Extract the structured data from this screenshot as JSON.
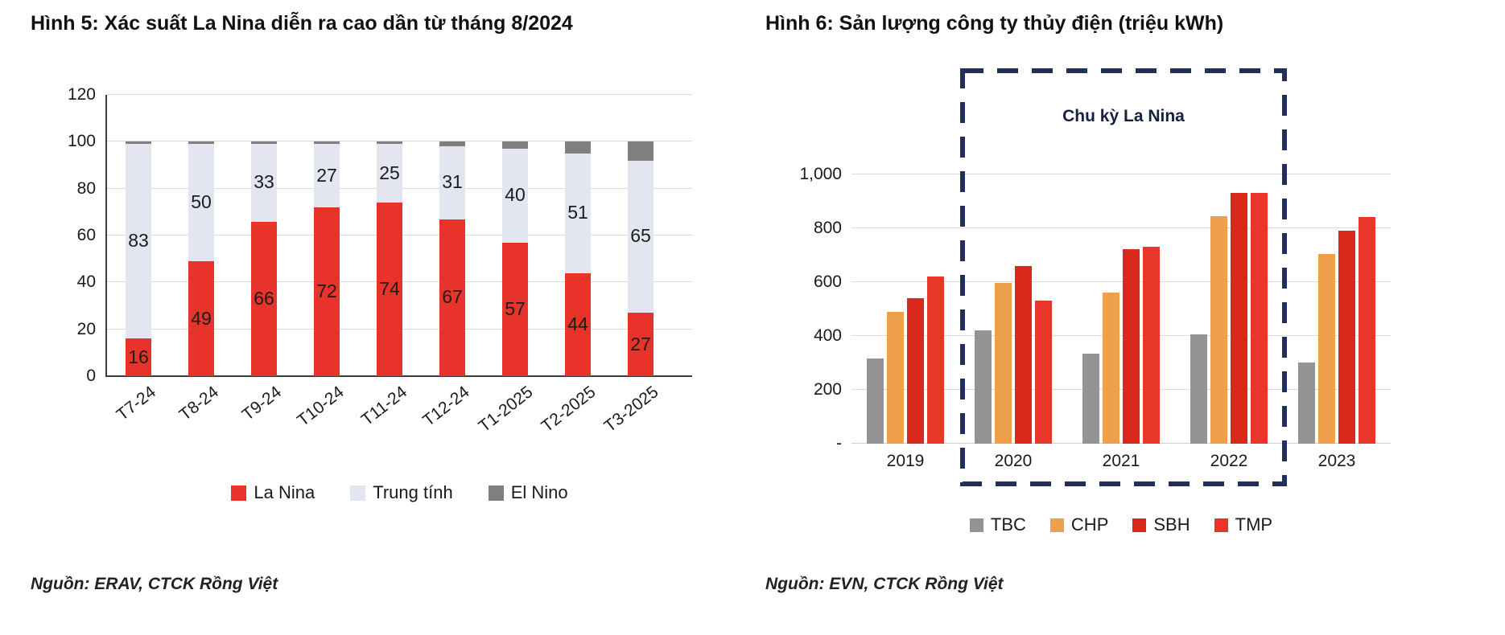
{
  "page": {
    "background": "#ffffff"
  },
  "chart_data": [
    {
      "id": "fig5",
      "type": "bar",
      "stacked": true,
      "title": "Hình 5: Xác suất La Nina diễn ra cao dần từ tháng 8/2024",
      "source": "Nguồn: ERAV, CTCK Rồng Việt",
      "categories": [
        "T7-24",
        "T8-24",
        "T9-24",
        "T10-24",
        "T11-24",
        "T12-24",
        "T1-2025",
        "T2-2025",
        "T3-2025"
      ],
      "series": [
        {
          "name": "La Nina",
          "color": "#e8332a",
          "show_labels": true,
          "values": [
            16,
            49,
            66,
            72,
            74,
            67,
            57,
            44,
            27
          ]
        },
        {
          "name": "Trung tính",
          "color": "#e3e6f1",
          "show_labels": true,
          "values": [
            83,
            50,
            33,
            27,
            25,
            31,
            40,
            51,
            65
          ]
        },
        {
          "name": "El Nino",
          "color": "#7f7f7f",
          "show_labels": false,
          "values": [
            1,
            1,
            1,
            1,
            1,
            2,
            3,
            5,
            8
          ]
        }
      ],
      "ylim": [
        0,
        120
      ],
      "yticks": [
        0,
        20,
        40,
        60,
        80,
        100,
        120
      ],
      "grid": true,
      "legend_position": "bottom",
      "xlabel": "",
      "ylabel": ""
    },
    {
      "id": "fig6",
      "type": "bar",
      "stacked": false,
      "title": "Hình 6: Sản lượng công ty thủy điện (triệu kWh)",
      "source": "Nguồn: EVN, CTCK Rồng Việt",
      "categories": [
        "2019",
        "2020",
        "2021",
        "2022",
        "2023"
      ],
      "series": [
        {
          "name": "TBC",
          "color": "#949494",
          "values": [
            315,
            420,
            335,
            405,
            300
          ]
        },
        {
          "name": "CHP",
          "color": "#efa04a",
          "values": [
            490,
            595,
            560,
            845,
            705
          ]
        },
        {
          "name": "SBH",
          "color": "#d9291d",
          "values": [
            540,
            660,
            720,
            930,
            790
          ]
        },
        {
          "name": "TMP",
          "color": "#e8362a",
          "values": [
            620,
            530,
            730,
            930,
            840
          ]
        }
      ],
      "ylim": [
        0,
        1100
      ],
      "yticks": [
        {
          "v": 0,
          "label": "-"
        },
        {
          "v": 200,
          "label": "200"
        },
        {
          "v": 400,
          "label": "400"
        },
        {
          "v": 600,
          "label": "600"
        },
        {
          "v": 800,
          "label": "800"
        },
        {
          "v": 1000,
          "label": "1,000"
        }
      ],
      "grid": true,
      "legend_position": "bottom",
      "annotation": {
        "text": "Chu kỳ La Nina",
        "covers": [
          "2020",
          "2021",
          "2022"
        ],
        "color": "#232f5b"
      },
      "xlabel": "",
      "ylabel": ""
    }
  ]
}
